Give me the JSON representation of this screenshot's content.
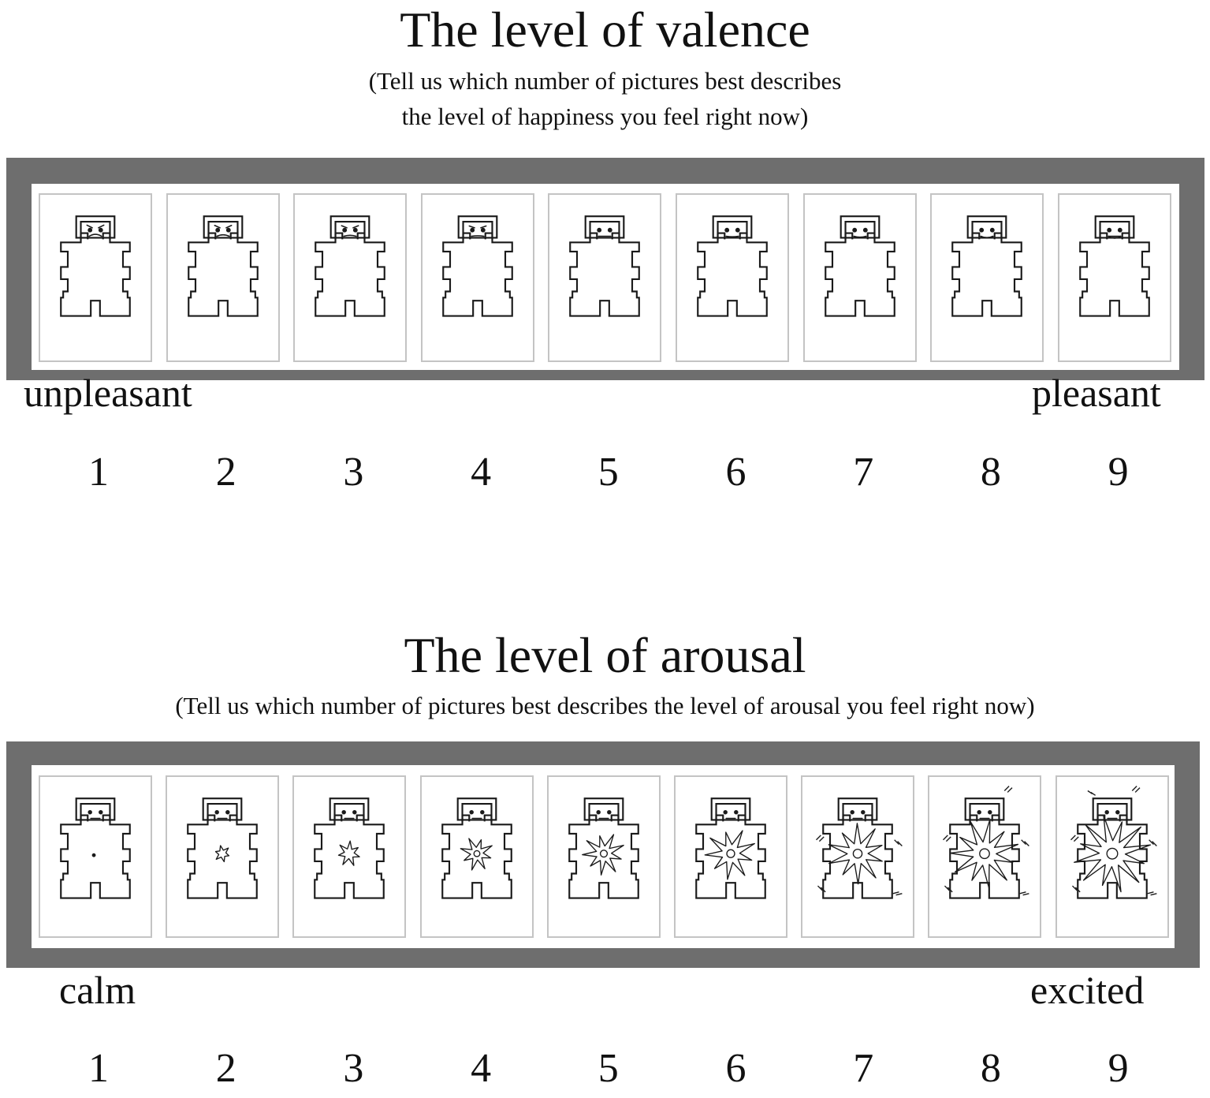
{
  "valence": {
    "title": "The level of valence",
    "subtitle_lines": [
      "(Tell us which number of pictures best describes",
      "the level of happiness you feel right now)"
    ],
    "left_label": "unpleasant",
    "right_label": "pleasant",
    "numbers": [
      "1",
      "2",
      "3",
      "4",
      "5",
      "6",
      "7",
      "8",
      "9"
    ],
    "mood_levels": [
      -1,
      -0.75,
      -0.5,
      -0.25,
      0,
      0.25,
      0.5,
      0.75,
      1
    ]
  },
  "arousal": {
    "title": "The level of arousal",
    "subtitle": "(Tell us which number of pictures best describes the level of arousal you feel right now)",
    "left_label": "calm",
    "right_label": "excited",
    "numbers": [
      "1",
      "2",
      "3",
      "4",
      "5",
      "6",
      "7",
      "8",
      "9"
    ],
    "arousal_levels": [
      0,
      0.125,
      0.25,
      0.375,
      0.5,
      0.625,
      0.75,
      0.875,
      1
    ]
  },
  "colors": {
    "frame": "#6e6e6e",
    "card_border": "#c4c4c4",
    "figure_stroke": "#1a1a1a"
  }
}
